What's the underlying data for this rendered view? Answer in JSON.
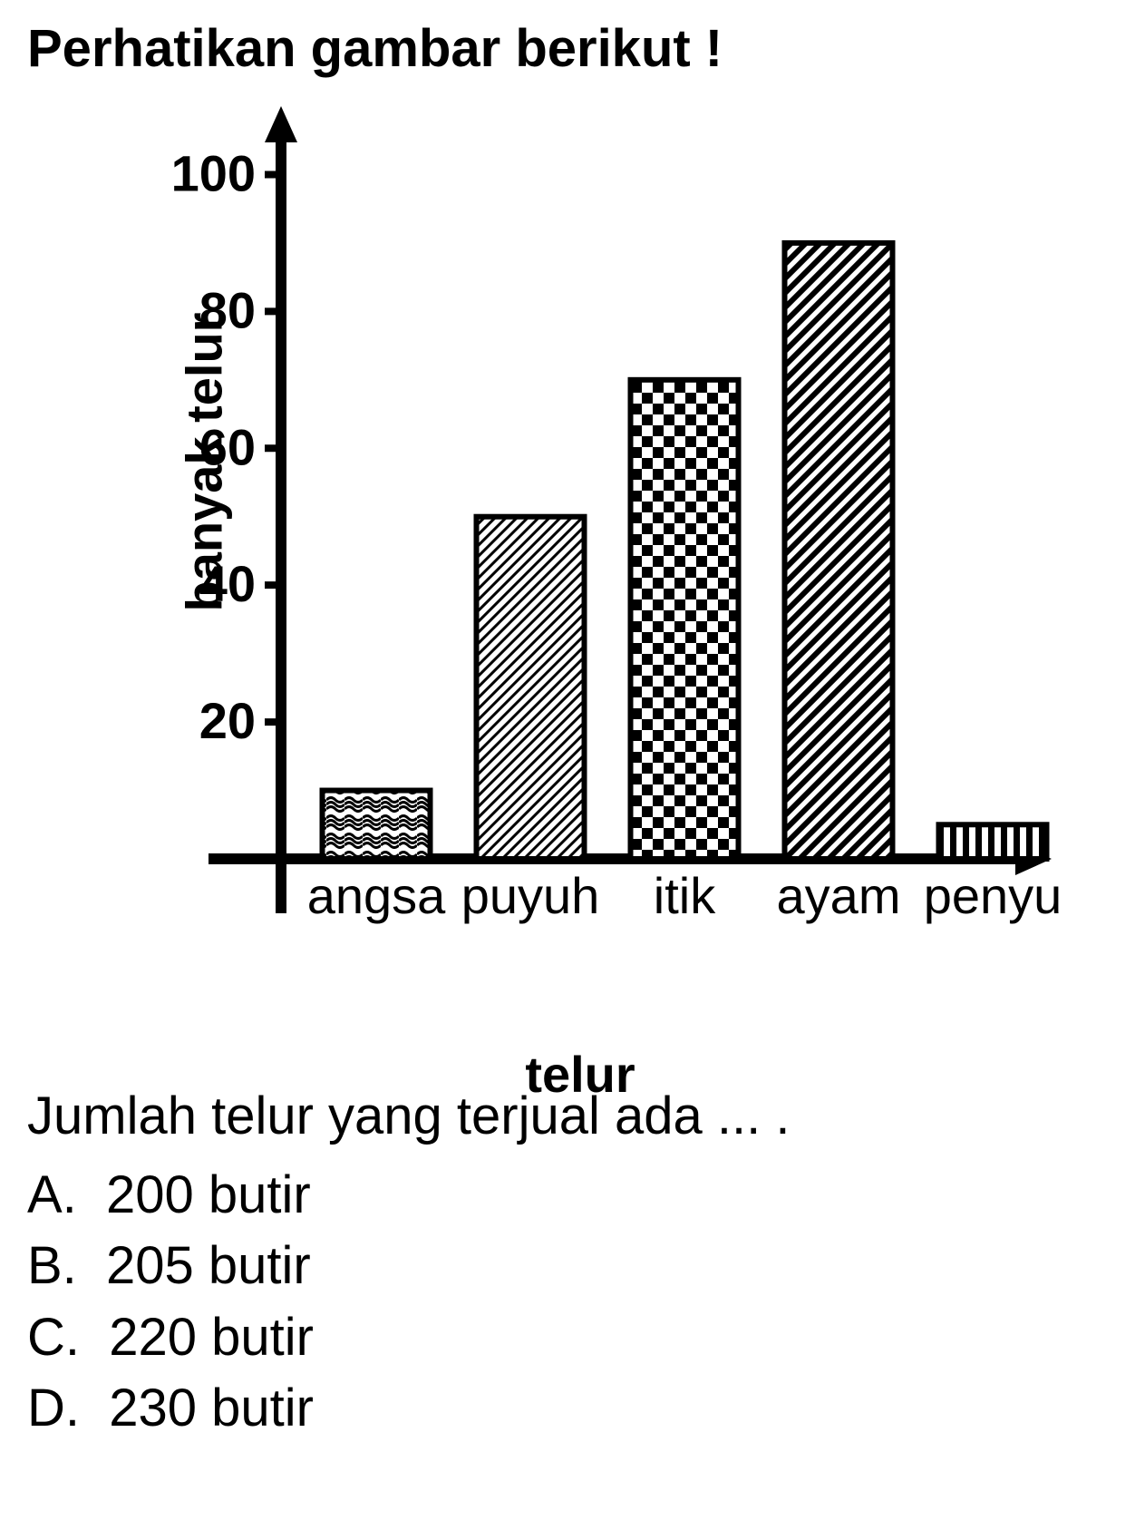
{
  "title": "Perhatikan gambar berikut !",
  "chart": {
    "type": "bar",
    "ylabel": "banyak telur",
    "xlabel": "telur",
    "ylim": [
      0,
      110
    ],
    "ytick_step": 20,
    "yticks": [
      20,
      40,
      60,
      80,
      100
    ],
    "categories": [
      "angsa",
      "puyuh",
      "itik",
      "ayam",
      "penyu"
    ],
    "values": [
      10,
      50,
      70,
      90,
      5
    ],
    "patterns": [
      "squiggle",
      "diag-thin",
      "checker",
      "diag-thick",
      "vertical"
    ],
    "bar_width": 0.7,
    "stroke_color": "#000000",
    "stroke_width": 6,
    "background_color": "#ffffff",
    "font_color": "#000000",
    "tick_fontsize": 56,
    "label_fontsize": 56,
    "title_fontsize": 58,
    "axis_width": 12,
    "arrow_size": 28
  },
  "question": "Jumlah telur yang terjual ada ... .",
  "options": {
    "A": "200 butir",
    "B": "205 butir",
    "C": "220 butir",
    "D": "230 butir"
  }
}
